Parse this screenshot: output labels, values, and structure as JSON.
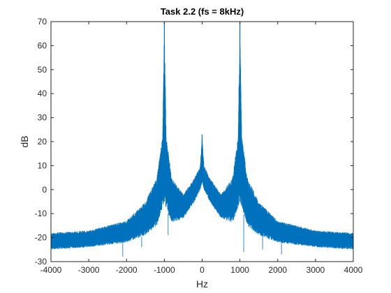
{
  "chart_data": {
    "type": "line",
    "title": "Task 2.2 (fs = 8kHz)",
    "xlabel": "Hz",
    "ylabel": "dB",
    "xlim": [
      -4000,
      4000
    ],
    "ylim": [
      -30,
      70
    ],
    "xticks": [
      "-4000",
      "-3000",
      "-2000",
      "-1000",
      "0",
      "1000",
      "2000",
      "3000",
      "4000"
    ],
    "yticks": [
      "-30",
      "-20",
      "-10",
      "0",
      "10",
      "20",
      "30",
      "40",
      "50",
      "60",
      "70"
    ],
    "grid": false,
    "legend": "none",
    "series": [
      {
        "color": "#0072BD",
        "peaks": [
          {
            "x": -1000,
            "y": 70
          },
          {
            "x": 0,
            "y": 23
          },
          {
            "x": 1000,
            "y": 70
          }
        ],
        "upper_envelope": [
          [
            -4000,
            -18
          ],
          [
            -3000,
            -17
          ],
          [
            -2000,
            -13
          ],
          [
            -1500,
            -5
          ],
          [
            -1200,
            5
          ],
          [
            -1050,
            22
          ],
          [
            -1000,
            70
          ],
          [
            -950,
            22
          ],
          [
            -800,
            5
          ],
          [
            -500,
            -2
          ],
          [
            -200,
            5
          ],
          [
            -50,
            10
          ],
          [
            0,
            23
          ],
          [
            50,
            10
          ],
          [
            200,
            5
          ],
          [
            500,
            -2
          ],
          [
            800,
            5
          ],
          [
            950,
            22
          ],
          [
            1000,
            70
          ],
          [
            1050,
            22
          ],
          [
            1200,
            5
          ],
          [
            1500,
            -5
          ],
          [
            2000,
            -13
          ],
          [
            3000,
            -17
          ],
          [
            4000,
            -18
          ]
        ],
        "lower_envelope": [
          [
            -4000,
            -25
          ],
          [
            -3000,
            -24
          ],
          [
            -2000,
            -22
          ],
          [
            -1500,
            -19
          ],
          [
            -1200,
            -15
          ],
          [
            -1050,
            -8
          ],
          [
            -1000,
            -5
          ],
          [
            -950,
            -8
          ],
          [
            -800,
            -14
          ],
          [
            -500,
            -12
          ],
          [
            -200,
            -5
          ],
          [
            -50,
            0
          ],
          [
            0,
            3
          ],
          [
            50,
            0
          ],
          [
            200,
            -5
          ],
          [
            500,
            -12
          ],
          [
            800,
            -14
          ],
          [
            950,
            -8
          ],
          [
            1000,
            -5
          ],
          [
            1050,
            -8
          ],
          [
            1200,
            -15
          ],
          [
            1500,
            -19
          ],
          [
            2000,
            -22
          ],
          [
            3000,
            -24
          ],
          [
            4000,
            -25
          ]
        ],
        "dips": [
          [
            -2100,
            -28
          ],
          [
            -1600,
            -24
          ],
          [
            -900,
            -19
          ],
          [
            1100,
            -26
          ],
          [
            1600,
            -25
          ],
          [
            2100,
            -27
          ]
        ]
      }
    ]
  }
}
